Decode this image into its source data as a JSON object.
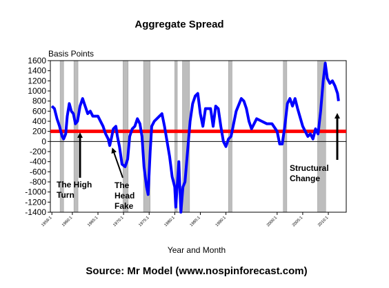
{
  "chart_data": {
    "type": "line",
    "title": "Aggregate Spread",
    "y_axis_label": "Basis Points",
    "x_axis_label": "Year and Month",
    "source": "Source: Mr Model (www.nospinforecast.com)",
    "xlim": [
      1955.7,
      2013.5
    ],
    "ylim": [
      -1400,
      1600
    ],
    "yticks": [
      -1400,
      -1200,
      -1000,
      -800,
      -600,
      -400,
      -200,
      0,
      200,
      400,
      600,
      800,
      1000,
      1200,
      1400,
      1600
    ],
    "xticks": [
      {
        "value": 1956,
        "label": "1956:1"
      },
      {
        "value": 1960,
        "label": "1960:1"
      },
      {
        "value": 1965,
        "label": "1965:1"
      },
      {
        "value": 1970,
        "label": "1970:1"
      },
      {
        "value": 1975,
        "label": "1975:1"
      },
      {
        "value": 1980,
        "label": "1980:1"
      },
      {
        "value": 1985,
        "label": "1985:1"
      },
      {
        "value": 1990,
        "label": "1990:1"
      },
      {
        "value": 2000,
        "label": "2000:1"
      },
      {
        "value": 2005,
        "label": "2005:1"
      },
      {
        "value": 2010,
        "label": "2010:1"
      }
    ],
    "reference_line": {
      "value": 200,
      "color": "#ff0000"
    },
    "shaded_periods": [
      [
        1957.6,
        1958.3
      ],
      [
        1960.3,
        1961.1
      ],
      [
        1969.9,
        1970.9
      ],
      [
        1973.9,
        1975.2
      ],
      [
        1980.0,
        1980.5
      ],
      [
        1981.5,
        1982.9
      ],
      [
        1990.5,
        1991.2
      ],
      [
        2001.2,
        2001.9
      ],
      [
        2007.9,
        2009.5
      ]
    ],
    "series": [
      {
        "name": "Aggregate Spread",
        "color": "#0000ff",
        "x": [
          1956.0,
          1956.5,
          1957,
          1957.5,
          1958,
          1958.3,
          1958.7,
          1959,
          1959.4,
          1959.8,
          1960.2,
          1960.6,
          1961,
          1961.5,
          1962,
          1962.5,
          1963,
          1963.5,
          1964,
          1965,
          1966,
          1966.5,
          1967,
          1967.3,
          1967.7,
          1968,
          1968.5,
          1968.8,
          1969.2,
          1969.7,
          1970.3,
          1970.8,
          1971.2,
          1971.7,
          1972.2,
          1972.7,
          1973.2,
          1973.6,
          1974,
          1974.5,
          1974.8,
          1975.2,
          1975.5,
          1976,
          1977,
          1977.5,
          1978,
          1978.5,
          1979,
          1979.5,
          1980.0,
          1980.2,
          1980.4,
          1980.8,
          1981.2,
          1981.6,
          1982,
          1982.5,
          1983,
          1983.5,
          1984,
          1984.5,
          1985,
          1985.5,
          1986,
          1987,
          1987.5,
          1988,
          1988.5,
          1989,
          1989.5,
          1990,
          1990.5,
          1991,
          1992,
          1993,
          1993.5,
          1994,
          1994.5,
          1995,
          1996,
          1997,
          1998,
          1999,
          2000,
          2000.5,
          2001,
          2001.5,
          2002,
          2002.5,
          2003,
          2003.5,
          2004,
          2005,
          2006,
          2006.5,
          2007,
          2007.5,
          2008,
          2008.5,
          2009,
          2009.4,
          2009.8,
          2010.3,
          2010.8,
          2011.3,
          2011.8,
          2012
        ],
        "values": [
          700,
          650,
          450,
          300,
          100,
          50,
          150,
          500,
          750,
          600,
          550,
          350,
          400,
          700,
          850,
          700,
          550,
          600,
          500,
          500,
          300,
          150,
          50,
          -80,
          100,
          250,
          300,
          100,
          -100,
          -450,
          -500,
          -350,
          100,
          250,
          300,
          450,
          350,
          100,
          -500,
          -900,
          -1050,
          -200,
          300,
          400,
          500,
          550,
          300,
          0,
          -300,
          -700,
          -900,
          -1300,
          -1000,
          -400,
          -1400,
          -900,
          -800,
          -200,
          400,
          750,
          900,
          950,
          550,
          300,
          650,
          650,
          300,
          700,
          650,
          300,
          0,
          -100,
          50,
          100,
          600,
          850,
          800,
          650,
          400,
          250,
          450,
          400,
          350,
          350,
          200,
          -50,
          -50,
          300,
          750,
          850,
          700,
          850,
          650,
          300,
          100,
          150,
          50,
          250,
          150,
          600,
          1200,
          1550,
          1250,
          1150,
          1200,
          1100,
          950,
          800
        ]
      }
    ],
    "annotations": [
      "The High Turn",
      "The Head Fake",
      "Structural Change"
    ]
  }
}
